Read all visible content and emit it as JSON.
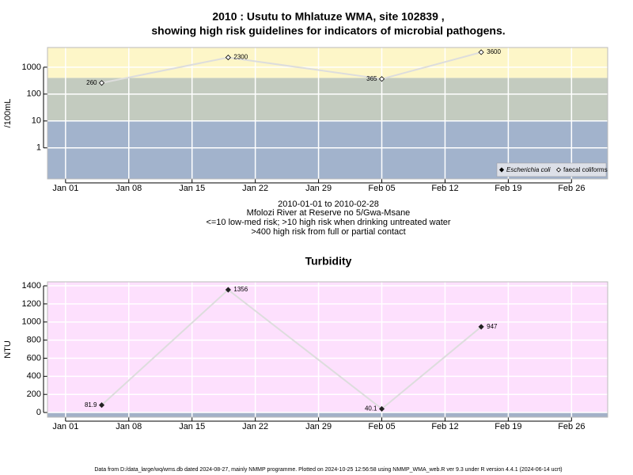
{
  "chart_data": [
    {
      "type": "line",
      "title": "2010 : Usutu to Mhlatuze WMA, site 102839 ,",
      "subtitle": "showing high risk guidelines for indicators of microbial pathogens.",
      "y_label": "/100mL",
      "log_scale": true,
      "x": [
        "2010-01-05",
        "2010-01-19",
        "2010-02-05",
        "2010-02-16"
      ],
      "series": [
        {
          "name": "Escherichia coli",
          "color": "#000000",
          "marker": "filled-diamond",
          "values": [
            null,
            null,
            null,
            null
          ]
        },
        {
          "name": "faecal coliforms",
          "color": "#000000",
          "marker": "open-diamond",
          "values": [
            260,
            2300,
            365,
            3600
          ]
        }
      ],
      "line_color": "#dddddd",
      "xlim": [
        "2009-12-30",
        "2010-03-02"
      ],
      "xticks": [
        {
          "value": "2010-01-01",
          "label": "Jan 01"
        },
        {
          "value": "2010-01-08",
          "label": "Jan 08"
        },
        {
          "value": "2010-01-15",
          "label": "Jan 15"
        },
        {
          "value": "2010-01-22",
          "label": "Jan 22"
        },
        {
          "value": "2010-01-29",
          "label": "Jan 29"
        },
        {
          "value": "2010-02-05",
          "label": "Feb 05"
        },
        {
          "value": "2010-02-12",
          "label": "Feb 12"
        },
        {
          "value": "2010-02-19",
          "label": "Feb 19"
        },
        {
          "value": "2010-02-26",
          "label": "Feb 26"
        }
      ],
      "ylim": [
        0.07,
        5400
      ],
      "yticks": [
        1,
        10,
        100,
        1000
      ],
      "grid": true,
      "legend": "bottom-right",
      "bands": [
        {
          "range": [
            null,
            10
          ],
          "color": "#a2b3cc"
        },
        {
          "range": [
            10,
            400
          ],
          "color": "#c3cbbf"
        },
        {
          "range": [
            400,
            null
          ],
          "color": "#fdf6c8"
        }
      ],
      "annotations": [
        "2010-01-01 to 2010-02-28",
        "Mfolozi River at Reserve no 5/Gwa-Msane",
        "<=10 low-med risk; >10 high risk when drinking untreated water",
        ">400 high risk from full or partial contact"
      ]
    },
    {
      "type": "line",
      "title": "Turbidity",
      "y_label": "NTU",
      "log_scale": false,
      "x": [
        "2010-01-05",
        "2010-01-19",
        "2010-02-05",
        "2010-02-16"
      ],
      "series": [
        {
          "color": "#222222",
          "marker": "filled-diamond",
          "values": [
            81.9,
            1356,
            40.1,
            947
          ]
        }
      ],
      "line_color": "#dddddd",
      "xlim": [
        "2009-12-30",
        "2010-03-02"
      ],
      "xticks": [
        {
          "value": "2010-01-01",
          "label": "Jan 01"
        },
        {
          "value": "2010-01-08",
          "label": "Jan 08"
        },
        {
          "value": "2010-01-15",
          "label": "Jan 15"
        },
        {
          "value": "2010-01-22",
          "label": "Jan 22"
        },
        {
          "value": "2010-01-29",
          "label": "Jan 29"
        },
        {
          "value": "2010-02-05",
          "label": "Feb 05"
        },
        {
          "value": "2010-02-12",
          "label": "Feb 12"
        },
        {
          "value": "2010-02-19",
          "label": "Feb 19"
        },
        {
          "value": "2010-02-26",
          "label": "Feb 26"
        }
      ],
      "ylim": [
        -52,
        1444
      ],
      "yticks": [
        0,
        200,
        400,
        600,
        800,
        1000,
        1200,
        1400
      ],
      "grid": true,
      "bands": [
        {
          "range": [
            null,
            0
          ],
          "color": "#a3b1c8"
        },
        {
          "range": [
            0,
            null
          ],
          "color": "#fde0fd"
        }
      ]
    }
  ],
  "footer": "Data from D:/data_large/wq/wms.db dated 2024-08-27, mainly NMMP programme. Plotted on 2024-10-25 12:56:58 using NMMP_WMA_web.R ver 9.3 under R version 4.4.1 (2024-06-14 ucrt)"
}
